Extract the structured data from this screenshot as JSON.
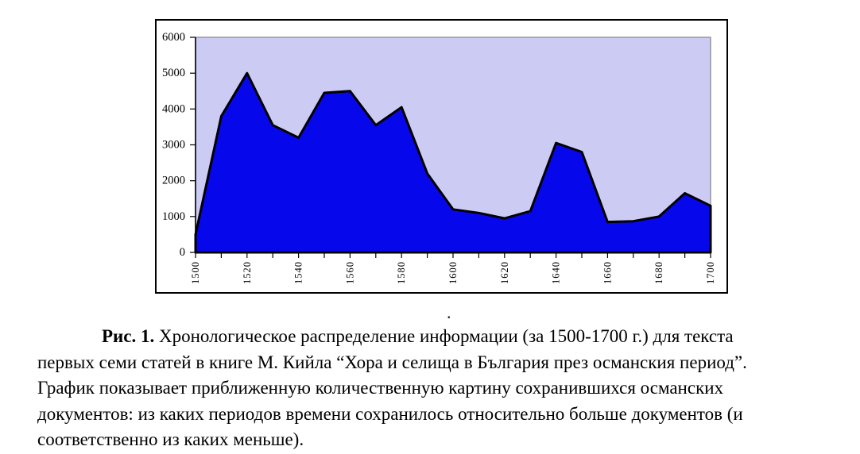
{
  "figure": {
    "stray_dot": "."
  },
  "caption": {
    "prefix": "Рис. 1.",
    "lines": [
      "Хронологическое распределение информации (за 1500-1700 г.) для текста",
      "первых семи статей в книге М. Кийла “Хора и селища в България през османския период”.",
      "График показывает приближенную количественную картину сохранившихся османских",
      "документов: из каких периодов времени сохранилось относительно больше документов (и",
      "соответственно из каких меньше)."
    ]
  },
  "chart_data": {
    "type": "area",
    "title": "",
    "xlabel": "",
    "ylabel": "",
    "x": [
      1500,
      1510,
      1520,
      1530,
      1540,
      1550,
      1560,
      1570,
      1580,
      1590,
      1600,
      1610,
      1620,
      1630,
      1640,
      1650,
      1660,
      1670,
      1680,
      1690,
      1700
    ],
    "values": [
      500,
      3800,
      5000,
      3550,
      3200,
      4450,
      4500,
      3550,
      4050,
      2200,
      1200,
      1100,
      950,
      1150,
      3050,
      2800,
      850,
      870,
      1000,
      1650,
      1300
    ],
    "ylim": [
      0,
      6000
    ],
    "yticks": [
      0,
      1000,
      2000,
      3000,
      4000,
      5000,
      6000
    ],
    "xtick_step_years": 10,
    "xlabel_step_years": 20,
    "xticklabels": [
      "1500",
      "1520",
      "1540",
      "1560",
      "1580",
      "1600",
      "1620",
      "1640",
      "1660",
      "1680",
      "1700"
    ],
    "grid": false,
    "legend": "none",
    "x_labels_rotated_degrees": -90,
    "colors": {
      "fill": "#0707EC",
      "line": "#000000",
      "plot_bg": "#CBCBF4",
      "plot_border": "#8A8A92",
      "axis": "#000000",
      "chart_bg": "#FFFFFF",
      "chart_border": "#000000"
    }
  }
}
